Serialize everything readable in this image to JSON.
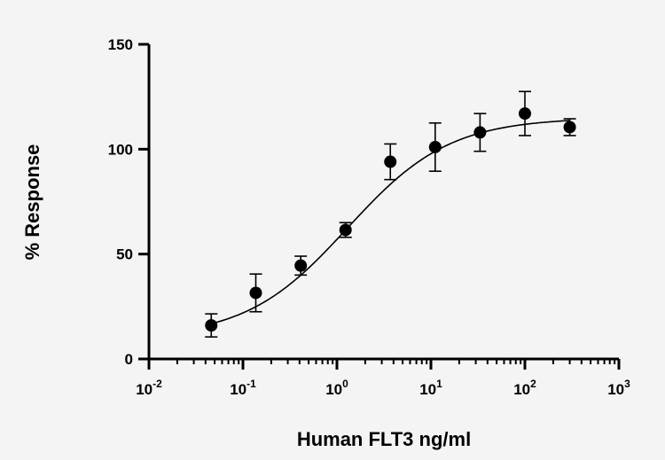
{
  "chart_data": {
    "type": "scatter",
    "title": "",
    "xlabel": "Human FLT3 ng/ml",
    "ylabel": "% Response",
    "x_scale": "log",
    "xlim": [
      0.01,
      1000
    ],
    "ylim": [
      0,
      150
    ],
    "x_ticks": [
      {
        "value": 0.01,
        "base": "10",
        "exp": "-2"
      },
      {
        "value": 0.1,
        "base": "10",
        "exp": "-1"
      },
      {
        "value": 1,
        "base": "10",
        "exp": "0"
      },
      {
        "value": 10,
        "base": "10",
        "exp": "1"
      },
      {
        "value": 100,
        "base": "10",
        "exp": "2"
      },
      {
        "value": 1000,
        "base": "10",
        "exp": "3"
      }
    ],
    "y_ticks": [
      0,
      50,
      100,
      150
    ],
    "grid": false,
    "colors": {
      "points": "#000000",
      "curve": "#000000",
      "background": "#f4f4f4"
    },
    "series": [
      {
        "points": [
          {
            "x": 0.046,
            "y": 16,
            "err": 5.5
          },
          {
            "x": 0.137,
            "y": 31.5,
            "err": 9
          },
          {
            "x": 0.412,
            "y": 44.5,
            "err": 4.5
          },
          {
            "x": 1.235,
            "y": 61.5,
            "err": 3.5
          },
          {
            "x": 3.7,
            "y": 94,
            "err": 8.5
          },
          {
            "x": 11.1,
            "y": 101,
            "err": 11.5
          },
          {
            "x": 33.3,
            "y": 108,
            "err": 9
          },
          {
            "x": 100,
            "y": 117,
            "err": 10.5
          },
          {
            "x": 300,
            "y": 110.5,
            "err": 4
          }
        ],
        "fit": {
          "model": "4PL",
          "bottom": 10,
          "top": 115,
          "ec50": 1.3,
          "hill": 0.8
        }
      }
    ]
  }
}
